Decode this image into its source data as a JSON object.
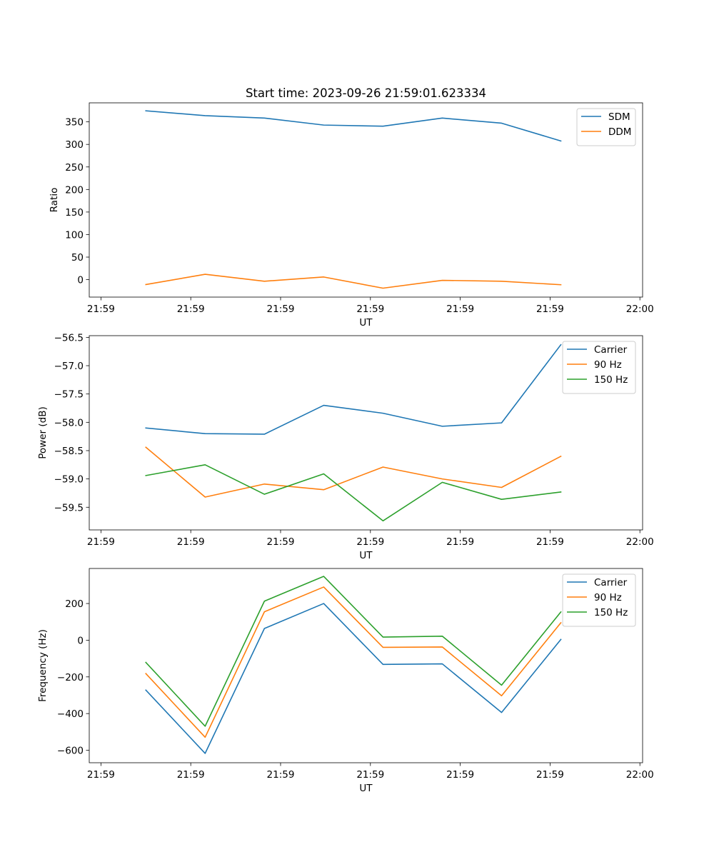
{
  "chart_data": [
    {
      "type": "line",
      "title": "Start time: 2023-09-26 21:59:01.623334",
      "xlabel": "UT",
      "ylabel": "Ratio",
      "x_tick_labels": [
        "21:59",
        "21:59",
        "21:59",
        "21:59",
        "21:59",
        "21:59",
        "22:00"
      ],
      "x": [
        0.5,
        1.16,
        1.82,
        2.48,
        3.14,
        3.8,
        4.46,
        5.12
      ],
      "xlim": [
        -0.13,
        6.03
      ],
      "ylim": [
        -38.7,
        392.2
      ],
      "y_ticks": [
        0,
        50,
        100,
        150,
        200,
        250,
        300,
        350
      ],
      "legend": "upper right",
      "series": [
        {
          "name": "SDM",
          "color": "#1f77b4",
          "values": [
            374.6,
            363.8,
            358.4,
            342.9,
            340.4,
            358.4,
            347.1,
            307.6
          ]
        },
        {
          "name": "DDM",
          "color": "#ff7f0e",
          "values": [
            -10.9,
            11.9,
            -3.5,
            5.9,
            -18.9,
            -1.5,
            -3.5,
            -11.3
          ]
        }
      ]
    },
    {
      "type": "line",
      "title": "",
      "xlabel": "UT",
      "ylabel": "Power (dB)",
      "x_tick_labels": [
        "21:59",
        "21:59",
        "21:59",
        "21:59",
        "21:59",
        "21:59",
        "22:00"
      ],
      "x": [
        0.5,
        1.16,
        1.82,
        2.48,
        3.14,
        3.8,
        4.46,
        5.12
      ],
      "xlim": [
        -0.13,
        6.03
      ],
      "ylim": [
        -59.9,
        -56.47
      ],
      "y_ticks": [
        -59.5,
        -59.0,
        -58.5,
        -58.0,
        -57.5,
        -57.0,
        -56.5
      ],
      "y_tick_labels": [
        "−59.5",
        "−59.0",
        "−58.5",
        "−58.0",
        "−57.5",
        "−57.0",
        "−56.5"
      ],
      "legend": "upper right",
      "series": [
        {
          "name": "Carrier",
          "color": "#1f77b4",
          "values": [
            -58.1,
            -58.2,
            -58.21,
            -57.7,
            -57.84,
            -58.07,
            -58.01,
            -56.63
          ]
        },
        {
          "name": "90 Hz",
          "color": "#ff7f0e",
          "values": [
            -58.44,
            -59.32,
            -59.09,
            -59.19,
            -58.79,
            -59.0,
            -59.15,
            -58.6
          ]
        },
        {
          "name": "150 Hz",
          "color": "#2ca02c",
          "values": [
            -58.94,
            -58.75,
            -59.27,
            -58.91,
            -59.74,
            -59.06,
            -59.36,
            -59.23
          ]
        }
      ]
    },
    {
      "type": "line",
      "title": "",
      "xlabel": "UT",
      "ylabel": "Frequency (Hz)",
      "x_tick_labels": [
        "21:59",
        "21:59",
        "21:59",
        "21:59",
        "21:59",
        "21:59",
        "22:00"
      ],
      "x": [
        0.5,
        1.16,
        1.82,
        2.48,
        3.14,
        3.8,
        4.46,
        5.12
      ],
      "xlim": [
        -0.13,
        6.03
      ],
      "ylim": [
        -668,
        391
      ],
      "y_ticks": [
        -600,
        -400,
        -200,
        0,
        200
      ],
      "y_tick_labels": [
        "−600",
        "−400",
        "−200",
        "0",
        "200"
      ],
      "legend": "upper right",
      "series": [
        {
          "name": "Carrier",
          "color": "#1f77b4",
          "values": [
            -272,
            -617,
            64,
            200,
            -132,
            -129,
            -394,
            4
          ]
        },
        {
          "name": "90 Hz",
          "color": "#ff7f0e",
          "values": [
            -182,
            -529,
            155,
            290,
            -39,
            -37,
            -303,
            95
          ]
        },
        {
          "name": "150 Hz",
          "color": "#2ca02c",
          "values": [
            -121,
            -469,
            213,
            348,
            17,
            22,
            -245,
            154
          ]
        }
      ]
    }
  ]
}
